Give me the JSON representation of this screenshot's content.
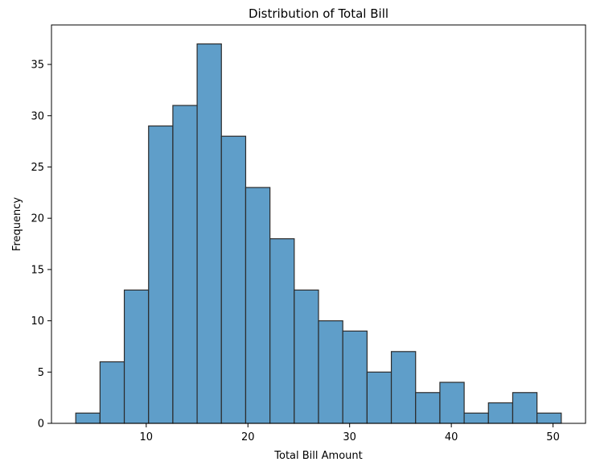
{
  "chart_data": {
    "type": "bar",
    "title": "Distribution of Total Bill",
    "xlabel": "Total Bill Amount",
    "ylabel": "Frequency",
    "bin_edges": [
      3.07,
      5.457,
      7.844,
      10.231,
      12.618,
      15.005,
      17.392,
      19.779,
      22.166,
      24.553,
      26.94,
      29.327,
      31.714,
      34.101,
      36.488,
      38.875,
      41.262,
      43.649,
      46.036,
      48.423,
      50.81
    ],
    "values": [
      1,
      6,
      13,
      29,
      31,
      37,
      28,
      23,
      18,
      13,
      10,
      9,
      5,
      7,
      3,
      4,
      1,
      2,
      3,
      1
    ],
    "xlim": [
      0.683,
      53.197
    ],
    "ylim": [
      0,
      38.85
    ],
    "xticks": [
      10,
      20,
      30,
      40,
      50
    ],
    "yticks": [
      0,
      5,
      10,
      15,
      20,
      25,
      30,
      35
    ],
    "bar_color": "#5f9ec9",
    "edge_color": "#2b2b2b",
    "grid": false,
    "legend": "none"
  }
}
